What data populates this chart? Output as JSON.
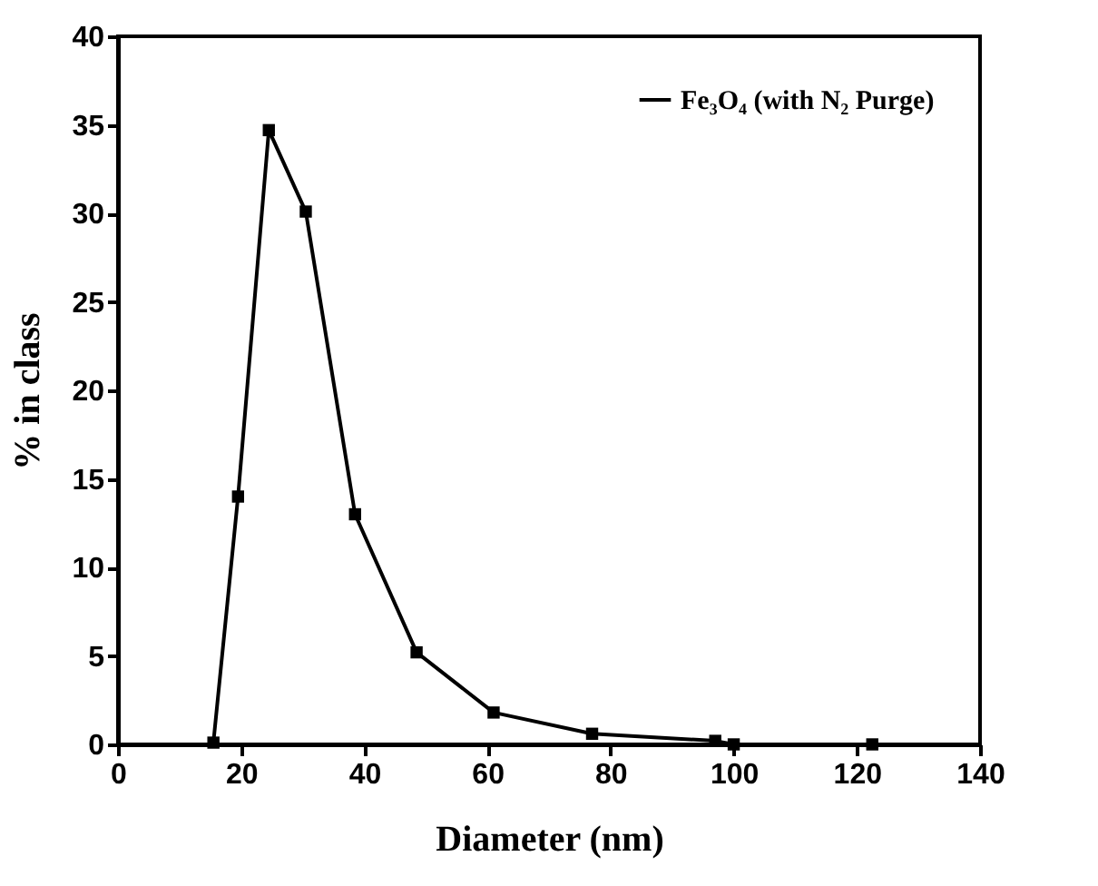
{
  "chart_data": {
    "type": "line",
    "xlabel": "Diameter (nm)",
    "ylabel": "% in class",
    "x": [
      15.5,
      19.5,
      24.5,
      30.5,
      38.5,
      48.5,
      61,
      77,
      97,
      100,
      122.5
    ],
    "series": [
      {
        "name": "Fe₃O₄ (with N₂ Purge)",
        "color": "#000000",
        "values": [
          0.1,
          14,
          34.7,
          30.1,
          13,
          5.2,
          1.8,
          0.6,
          0.2,
          0,
          0
        ]
      }
    ],
    "xlim": [
      0,
      140
    ],
    "xticks": [
      0,
      20,
      40,
      60,
      80,
      100,
      120,
      140
    ],
    "ylim": [
      0,
      40
    ],
    "yticks": [
      0,
      5,
      10,
      15,
      20,
      25,
      30,
      35,
      40
    ],
    "marker": "square",
    "line_style": "solid",
    "grid": false,
    "legend": "top right"
  }
}
